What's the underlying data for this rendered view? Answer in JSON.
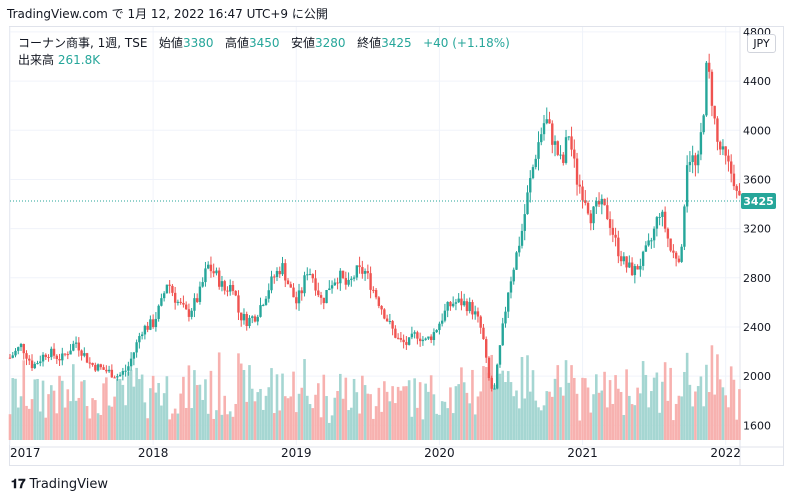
{
  "header": {
    "source_line": "TradingView.com で 1月 12, 2022 16:47 UTC+9 に公開"
  },
  "legend": {
    "symbol": "コーナン商事, 1週, TSE",
    "open_label": "始値",
    "open_value": "3380",
    "high_label": "高値",
    "high_value": "3450",
    "low_label": "安値",
    "low_value": "3280",
    "close_label": "終値",
    "close_value": "3425",
    "change": "+40 (+1.18%)",
    "volume_label": "出来高",
    "volume_value": "261.8K"
  },
  "currency_button": "JPY",
  "price_tag": "3425",
  "footer": {
    "brand": "TradingView"
  },
  "colors": {
    "up": "#26a69a",
    "down": "#ef5350",
    "up_volume": "#a5d6d2",
    "down_volume": "#f7b1af",
    "grid": "#f0f3fa",
    "axis_text": "#131722"
  },
  "chart_data": {
    "type": "candlestick",
    "title": "",
    "xlabel": "",
    "ylabel": "",
    "ylim": [
      1440,
      4840
    ],
    "yticks": [
      1600,
      2000,
      2400,
      2800,
      3200,
      3600,
      4000,
      4400,
      4800
    ],
    "xlim": [
      2017.0,
      2022.1
    ],
    "xticks": [
      {
        "x": 2017.0,
        "label": "2017"
      },
      {
        "x": 2018.0,
        "label": "2018"
      },
      {
        "x": 2019.0,
        "label": "2019"
      },
      {
        "x": 2020.0,
        "label": "2020"
      },
      {
        "x": 2021.0,
        "label": "2021"
      },
      {
        "x": 2022.0,
        "label": "2022"
      }
    ],
    "last_price": 3425,
    "price_path": [
      [
        2017.0,
        2150
      ],
      [
        2017.08,
        2250
      ],
      [
        2017.16,
        2080
      ],
      [
        2017.26,
        2200
      ],
      [
        2017.36,
        2140
      ],
      [
        2017.46,
        2280
      ],
      [
        2017.56,
        2100
      ],
      [
        2017.66,
        2050
      ],
      [
        2017.76,
        2000
      ],
      [
        2017.82,
        2060
      ],
      [
        2017.86,
        2180
      ],
      [
        2017.92,
        2380
      ],
      [
        2018.0,
        2430
      ],
      [
        2018.06,
        2600
      ],
      [
        2018.1,
        2780
      ],
      [
        2018.16,
        2620
      ],
      [
        2018.24,
        2500
      ],
      [
        2018.32,
        2650
      ],
      [
        2018.38,
        2900
      ],
      [
        2018.44,
        2820
      ],
      [
        2018.5,
        2700
      ],
      [
        2018.56,
        2750
      ],
      [
        2018.6,
        2500
      ],
      [
        2018.66,
        2450
      ],
      [
        2018.72,
        2500
      ],
      [
        2018.78,
        2650
      ],
      [
        2018.84,
        2800
      ],
      [
        2018.9,
        2900
      ],
      [
        2018.96,
        2700
      ],
      [
        2019.0,
        2600
      ],
      [
        2019.04,
        2700
      ],
      [
        2019.08,
        2880
      ],
      [
        2019.12,
        2800
      ],
      [
        2019.18,
        2600
      ],
      [
        2019.24,
        2760
      ],
      [
        2019.3,
        2820
      ],
      [
        2019.36,
        2720
      ],
      [
        2019.42,
        2850
      ],
      [
        2019.48,
        2850
      ],
      [
        2019.54,
        2700
      ],
      [
        2019.6,
        2550
      ],
      [
        2019.66,
        2400
      ],
      [
        2019.72,
        2280
      ],
      [
        2019.78,
        2260
      ],
      [
        2019.84,
        2350
      ],
      [
        2019.9,
        2280
      ],
      [
        2019.96,
        2350
      ],
      [
        2020.02,
        2480
      ],
      [
        2020.06,
        2560
      ],
      [
        2020.1,
        2600
      ],
      [
        2020.16,
        2600
      ],
      [
        2020.22,
        2560
      ],
      [
        2020.26,
        2480
      ],
      [
        2020.3,
        2350
      ],
      [
        2020.34,
        2000
      ],
      [
        2020.38,
        1840
      ],
      [
        2020.42,
        2200
      ],
      [
        2020.48,
        2700
      ],
      [
        2020.54,
        3000
      ],
      [
        2020.58,
        3200
      ],
      [
        2020.62,
        3500
      ],
      [
        2020.68,
        3850
      ],
      [
        2020.74,
        4100
      ],
      [
        2020.8,
        3900
      ],
      [
        2020.86,
        3700
      ],
      [
        2020.9,
        4000
      ],
      [
        2020.96,
        3600
      ],
      [
        2021.02,
        3450
      ],
      [
        2021.06,
        3300
      ],
      [
        2021.12,
        3400
      ],
      [
        2021.18,
        3300
      ],
      [
        2021.24,
        3050
      ],
      [
        2021.3,
        2900
      ],
      [
        2021.36,
        2850
      ],
      [
        2021.42,
        2950
      ],
      [
        2021.48,
        3100
      ],
      [
        2021.54,
        3350
      ],
      [
        2021.58,
        3200
      ],
      [
        2021.62,
        3000
      ],
      [
        2021.66,
        2980
      ],
      [
        2021.7,
        3000
      ],
      [
        2021.72,
        3750
      ],
      [
        2021.76,
        3800
      ],
      [
        2021.8,
        3650
      ],
      [
        2021.84,
        4100
      ],
      [
        2021.87,
        4550
      ],
      [
        2021.9,
        4300
      ],
      [
        2021.94,
        3900
      ],
      [
        2021.98,
        3800
      ],
      [
        2022.02,
        3700
      ],
      [
        2022.06,
        3600
      ],
      [
        2022.08,
        3450
      ],
      [
        2022.1,
        3425
      ]
    ]
  }
}
